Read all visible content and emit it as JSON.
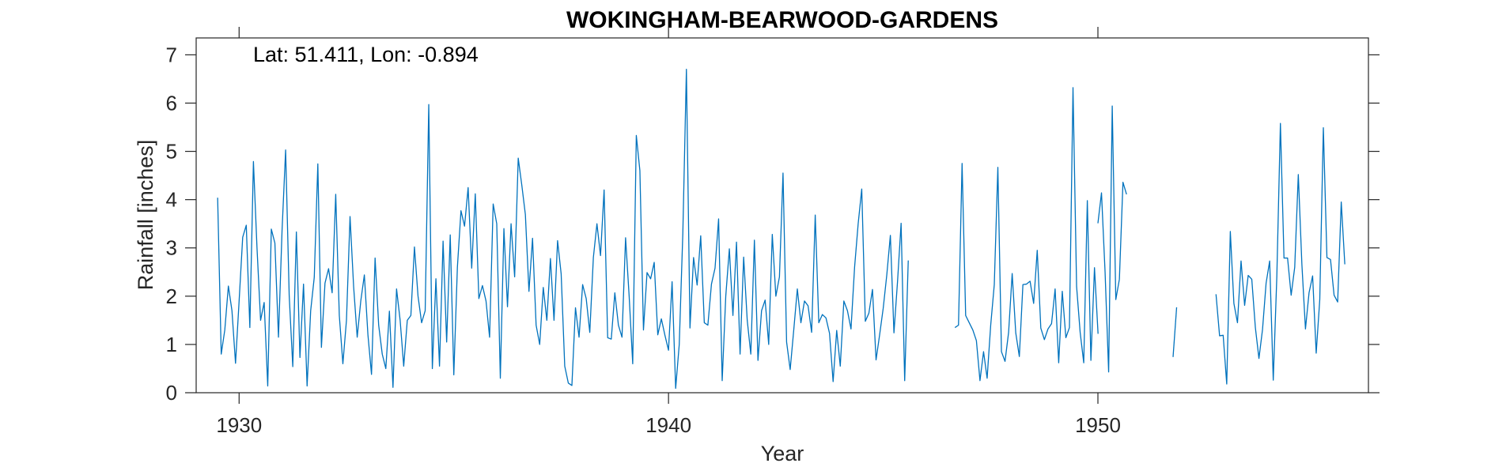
{
  "chart_data": {
    "type": "line",
    "title": "WOKINGHAM-BEARWOOD-GARDENS",
    "xlabel": "Year",
    "ylabel": "Rainfall [inches]",
    "annotation": "Lat: 51.411, Lon: -0.894",
    "xlim": [
      1929,
      1956.3
    ],
    "ylim": [
      0,
      7.35
    ],
    "xticks": [
      1930,
      1940,
      1950
    ],
    "xtick_labels": [
      "1930",
      "1940",
      "1950"
    ],
    "yticks": [
      0,
      1,
      2,
      3,
      4,
      5,
      6,
      7
    ],
    "ytick_labels": [
      "0",
      "1",
      "2",
      "3",
      "4",
      "5",
      "6",
      "7"
    ],
    "grid": false,
    "line_color": "#0072BD",
    "series": [
      {
        "segments": [
          {
            "start_year": 1929.5,
            "step": 0.083333,
            "values": [
              4.04,
              0.8,
              1.3,
              2.21,
              1.7,
              0.61,
              1.9,
              3.22,
              3.47,
              1.35,
              4.79,
              3.0,
              1.5,
              1.87,
              0.14,
              3.39,
              3.1,
              1.15,
              3.36,
              5.03,
              2.01,
              0.54,
              3.33,
              0.73,
              2.25,
              0.14,
              1.7,
              2.39,
              4.74,
              0.94,
              2.27,
              2.57,
              2.07,
              4.11,
              1.6,
              0.6,
              1.5,
              3.65,
              2.2,
              1.15,
              1.9,
              2.44,
              1.2,
              0.38,
              2.79,
              1.4,
              0.8,
              0.5,
              1.69,
              0.11,
              2.15,
              1.5,
              0.55,
              1.5,
              1.6,
              3.02,
              2.0,
              1.45,
              1.7,
              5.97,
              0.5,
              2.36,
              0.55,
              3.14,
              1.05,
              3.27,
              0.37,
              2.6,
              3.77,
              3.45,
              4.25,
              2.58,
              4.12,
              1.95,
              2.22,
              1.9,
              1.15,
              3.91,
              3.5,
              0.3,
              3.4,
              1.78,
              3.5,
              2.4,
              4.86,
              4.3,
              3.69,
              2.1,
              3.2,
              1.4,
              1.0,
              2.18,
              1.5,
              2.78,
              1.5,
              3.15,
              2.46,
              0.55,
              0.2,
              0.15,
              1.76,
              1.15,
              2.24,
              1.95,
              1.25,
              2.8,
              3.5,
              2.84,
              4.2,
              1.14,
              1.11,
              2.07,
              1.4,
              1.15,
              3.21,
              2.0,
              0.6,
              5.33,
              4.6,
              1.3,
              2.49,
              2.36,
              2.7,
              1.2,
              1.53,
              1.19,
              0.88,
              2.3,
              0.09,
              1.0,
              3.3,
              6.7,
              1.34,
              2.8,
              2.23,
              3.25,
              1.45,
              1.4,
              2.25,
              2.58,
              3.6,
              0.25,
              2.0,
              2.98,
              1.6,
              3.12,
              0.8,
              2.81,
              1.5,
              0.8,
              3.16,
              0.67,
              1.7,
              1.92,
              1.0,
              3.28,
              2.0,
              2.4,
              4.55,
              1.05,
              0.48,
              1.3,
              2.15,
              1.45,
              1.9,
              1.8,
              1.25,
              3.68,
              1.45,
              1.62,
              1.55,
              1.23,
              0.23,
              1.29,
              0.55,
              1.9,
              1.7,
              1.32,
              2.6,
              3.5,
              4.22,
              1.48,
              1.65,
              2.14,
              0.68,
              1.2,
              1.75,
              2.44,
              3.26,
              1.24,
              2.3,
              3.51,
              0.25,
              2.74
            ]
          },
          {
            "start_year": 1946.67,
            "step": 0.083333,
            "values": [
              1.35,
              1.4,
              4.75,
              1.6,
              1.45,
              1.3,
              1.08,
              0.25,
              0.85,
              0.3,
              1.4,
              2.24,
              4.67,
              0.85,
              0.65,
              1.25,
              2.47,
              1.24,
              0.75,
              2.24,
              2.25,
              2.31,
              1.85,
              2.95,
              1.34,
              1.1,
              1.32,
              1.43,
              2.15,
              0.62,
              2.1,
              1.14,
              1.35,
              6.32,
              2.2,
              1.25,
              0.62,
              3.98,
              0.67,
              2.59,
              1.22
            ]
          },
          {
            "start_year": 1950.0,
            "step": 0.083333,
            "values": [
              3.51,
              4.14,
              2.5,
              0.43,
              5.94,
              1.93,
              2.35,
              4.36,
              4.11
            ]
          },
          {
            "start_year": 1951.75,
            "step": 0.083333,
            "values": [
              0.74,
              1.77
            ]
          },
          {
            "start_year": 1952.75,
            "step": 0.083333,
            "values": [
              2.04,
              1.18,
              1.19,
              0.18,
              3.34,
              1.85,
              1.45,
              2.73,
              1.81,
              2.43,
              2.35,
              1.35,
              0.71,
              1.31,
              2.27,
              2.73,
              0.26,
              2.41,
              5.58,
              2.79,
              2.79,
              2.02,
              2.6,
              4.52,
              2.66,
              1.32,
              2.07,
              2.42,
              0.82,
              1.93,
              5.49,
              2.8,
              2.76,
              2.02,
              1.88,
              3.95,
              2.66
            ]
          }
        ]
      }
    ]
  }
}
